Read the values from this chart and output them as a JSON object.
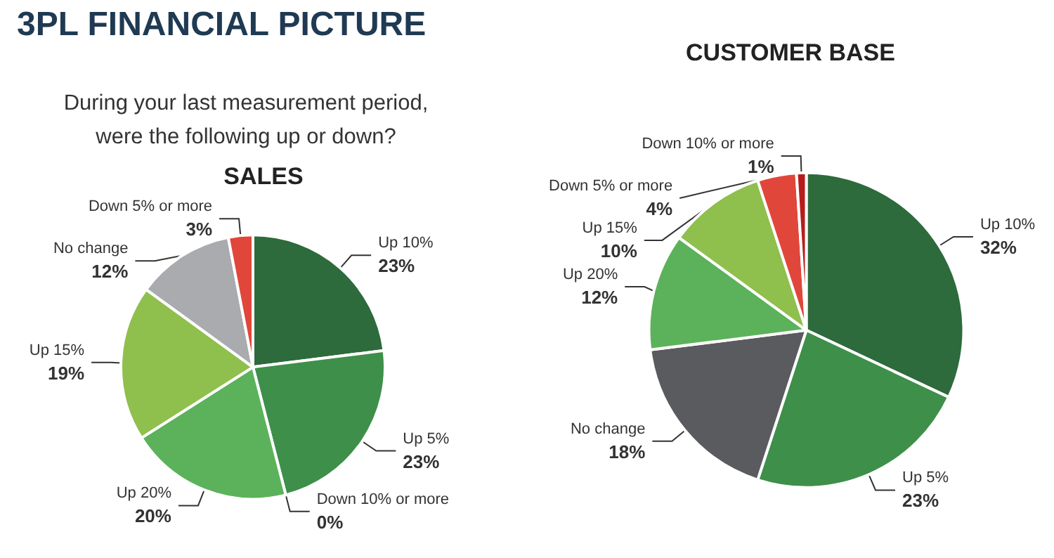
{
  "chart_data": [
    {
      "type": "pie",
      "title": "SALES",
      "annotations": [
        "3PL FINANCIAL PICTURE",
        "During your last measurement period, were the following up or down?"
      ],
      "categories": [
        "Up 10%",
        "Up 5%",
        "Down 10% or more",
        "Up 20%",
        "Up 15%",
        "No change",
        "Down 5% or more"
      ],
      "values": [
        23,
        23,
        0,
        20,
        19,
        12,
        3
      ],
      "value_labels": [
        "23%",
        "23%",
        "0%",
        "20%",
        "19%",
        "12%",
        "3%"
      ],
      "colors": [
        "#2d6a3c",
        "#3e8f4a",
        "#b71c1c",
        "#5cb25a",
        "#8fbf4d",
        "#a9abae",
        "#e0473a"
      ]
    },
    {
      "type": "pie",
      "title": "CUSTOMER BASE",
      "categories": [
        "Up 10%",
        "Up 5%",
        "No change",
        "Up 20%",
        "Up 15%",
        "Down 5% or more",
        "Down 10% or more"
      ],
      "values": [
        32,
        23,
        18,
        12,
        10,
        4,
        1
      ],
      "value_labels": [
        "32%",
        "23%",
        "18%",
        "12%",
        "10%",
        "4%",
        "1%"
      ],
      "colors": [
        "#2d6a3c",
        "#3e8f4a",
        "#5a5b5e",
        "#5cb25a",
        "#8fbf4d",
        "#e0473a",
        "#b71c1c"
      ]
    }
  ]
}
